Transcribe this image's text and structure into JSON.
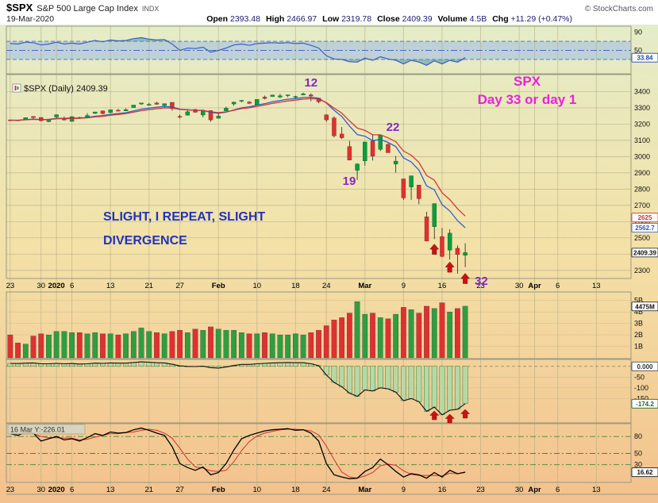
{
  "header": {
    "symbol": "$SPX",
    "name": "S&P 500 Large Cap Index",
    "exchange": "INDX",
    "date": "19-Mar-2020",
    "copyright": "© StockCharts.com",
    "quote": [
      {
        "label": "Open",
        "value": "2393.48"
      },
      {
        "label": "High",
        "value": "2466.97"
      },
      {
        "label": "Low",
        "value": "2319.78"
      },
      {
        "label": "Close",
        "value": "2409.39"
      },
      {
        "label": "Volume",
        "value": "4.5B"
      },
      {
        "label": "Chg",
        "value": "+11.29 (+0.47%)"
      }
    ]
  },
  "main_label": "$SPX (Daily) 2409.39",
  "annotations": {
    "cycle_day_top": "12",
    "cycle_day_rebound": "22",
    "cycle_day_low": "19",
    "cycle_day_current": "32",
    "headline_line1": "SPX",
    "headline_line2": "Day 33 or day 1",
    "divergence_line1": "SLIGHT, I REPEAT, SLIGHT",
    "divergence_line2": "DIVERGENCE",
    "tooltip": "16 Mar Y:-226.01"
  },
  "colors": {
    "candle_up": "#0b9e3d",
    "candle_down": "#e03030",
    "ma_fast": "#2857c8",
    "ma_slow": "#d03030",
    "rsi_line": "#3a5fc0",
    "rsi_band": "#b7cdd9",
    "volume_up": "#2f9e41",
    "volume_down": "#e03030",
    "hist_fill": "#b5d9a5",
    "hist_edge": "#3f7a37",
    "arrow": "#cc1111",
    "cycle_text": "#8426c9",
    "headline_text": "#e823d8",
    "divergence_text": "#2233bb",
    "bg_top": "#e4ecc8",
    "bg_mid": "#f3e2a8",
    "bg_bottom": "#f3c18d"
  },
  "xaxis": {
    "total_sessions": 81,
    "ticks": [
      {
        "label": "23",
        "i": 0
      },
      {
        "label": "30",
        "i": 4
      },
      {
        "label": "2020",
        "i": 6
      },
      {
        "label": "6",
        "i": 8
      },
      {
        "label": "13",
        "i": 13
      },
      {
        "label": "21",
        "i": 18
      },
      {
        "label": "27",
        "i": 22
      },
      {
        "label": "Feb",
        "i": 27
      },
      {
        "label": "10",
        "i": 32
      },
      {
        "label": "18",
        "i": 37
      },
      {
        "label": "24",
        "i": 41
      },
      {
        "label": "Mar",
        "i": 46
      },
      {
        "label": "9",
        "i": 51
      },
      {
        "label": "16",
        "i": 56
      },
      {
        "label": "23",
        "i": 61
      },
      {
        "label": "30",
        "i": 66
      },
      {
        "label": "Apr",
        "i": 68
      },
      {
        "label": "6",
        "i": 71
      },
      {
        "label": "13",
        "i": 76
      }
    ]
  },
  "chart_data": [
    {
      "panel": "rsi",
      "type": "line",
      "name": "RSI",
      "ylim": [
        0,
        100
      ],
      "yticks": [
        90,
        50
      ],
      "overbought": 70,
      "midline": 50,
      "oversold": 30,
      "last_value": 33.84,
      "last_value_label": "33.84",
      "values": [
        65,
        64,
        68,
        67,
        62,
        64,
        68,
        64,
        66,
        64,
        68,
        72,
        69,
        73,
        71,
        72,
        76,
        78,
        75,
        73,
        74,
        64,
        50,
        55,
        54,
        57,
        46,
        50,
        55,
        62,
        64,
        61,
        65,
        66,
        67,
        66,
        67,
        65,
        66,
        61,
        55,
        38,
        31,
        30,
        25,
        24,
        33,
        28,
        36,
        31,
        28,
        20,
        28,
        24,
        17,
        27,
        20,
        28,
        24,
        33.84
      ]
    },
    {
      "panel": "price",
      "type": "candlestick",
      "name": "$SPX Daily",
      "ylim": [
        2255,
        3495
      ],
      "yticks": [
        3400,
        3300,
        3200,
        3100,
        3000,
        2900,
        2800,
        2700,
        2600,
        2500,
        2400,
        2300
      ],
      "close_value": 2409.39,
      "close_label": "2409.39",
      "overlays": [
        {
          "name": "fast-ema",
          "color_key": "ma_fast",
          "span": 8,
          "last_value": 2562.7,
          "last_value_label": "2562.7"
        },
        {
          "name": "slow-ema",
          "color_key": "ma_slow",
          "span": 11,
          "last_value": 2625,
          "last_value_label": "2625"
        }
      ],
      "dates": [
        "23 Dec",
        "24 Dec",
        "26 Dec",
        "27 Dec",
        "30 Dec",
        "31 Dec",
        "2 Jan",
        "3 Jan",
        "6 Jan",
        "7 Jan",
        "8 Jan",
        "9 Jan",
        "10 Jan",
        "13 Jan",
        "14 Jan",
        "15 Jan",
        "16 Jan",
        "17 Jan",
        "21 Jan",
        "22 Jan",
        "23 Jan",
        "24 Jan",
        "27 Jan",
        "28 Jan",
        "29 Jan",
        "30 Jan",
        "31 Jan",
        "3 Feb",
        "4 Feb",
        "5 Feb",
        "6 Feb",
        "7 Feb",
        "10 Feb",
        "11 Feb",
        "12 Feb",
        "13 Feb",
        "14 Feb",
        "18 Feb",
        "19 Feb",
        "20 Feb",
        "21 Feb",
        "24 Feb",
        "25 Feb",
        "26 Feb",
        "27 Feb",
        "28 Feb",
        "2 Mar",
        "3 Mar",
        "4 Mar",
        "5 Mar",
        "6 Mar",
        "9 Mar",
        "10 Mar",
        "11 Mar",
        "12 Mar",
        "13 Mar",
        "16 Mar",
        "17 Mar",
        "18 Mar",
        "19 Mar"
      ],
      "open": [
        3226,
        3225,
        3227,
        3247,
        3241,
        3215,
        3244,
        3226,
        3217,
        3241,
        3238,
        3266,
        3282,
        3271,
        3285,
        3282,
        3302,
        3324,
        3321,
        3330,
        3315,
        3334,
        3247,
        3255,
        3290,
        3256,
        3283,
        3236,
        3281,
        3324,
        3344,
        3336,
        3319,
        3366,
        3370,
        3366,
        3378,
        3369,
        3380,
        3380,
        3360,
        3257,
        3238,
        3139,
        3062,
        2916,
        2974,
        3096,
        3045,
        3075,
        2954,
        2863,
        2813,
        2825,
        2630,
        2569,
        2508,
        2425,
        2436,
        2393
      ],
      "high": [
        3227,
        3226,
        3240,
        3248,
        3241,
        3231,
        3258,
        3247,
        3247,
        3245,
        3267,
        3275,
        3282,
        3288,
        3294,
        3298,
        3317,
        3330,
        3330,
        3337,
        3326,
        3334,
        3258,
        3285,
        3293,
        3285,
        3283,
        3269,
        3307,
        3338,
        3348,
        3342,
        3352,
        3376,
        3381,
        3386,
        3381,
        3375,
        3394,
        3389,
        3360,
        3260,
        3247,
        3182,
        3097,
        2959,
        3090,
        3136,
        3130,
        3083,
        3004,
        2863,
        2882,
        2825,
        2660,
        2711,
        2562,
        2553,
        2454,
        2467
      ],
      "low": [
        3220,
        3220,
        3227,
        3234,
        3217,
        3212,
        3235,
        3222,
        3214,
        3232,
        3236,
        3263,
        3260,
        3268,
        3277,
        3280,
        3302,
        3318,
        3316,
        3320,
        3301,
        3282,
        3234,
        3254,
        3271,
        3242,
        3214,
        3235,
        3280,
        3313,
        3334,
        3323,
        3318,
        3352,
        3370,
        3361,
        3366,
        3355,
        3378,
        3341,
        3328,
        3214,
        3118,
        3109,
        2977,
        2856,
        2945,
        2976,
        3034,
        3024,
        2901,
        2734,
        2734,
        2707,
        2478,
        2492,
        2381,
        2367,
        2280,
        2320
      ],
      "close": [
        3224,
        3223,
        3240,
        3240,
        3221,
        3231,
        3258,
        3235,
        3246,
        3237,
        3253,
        3275,
        3265,
        3288,
        3283,
        3289,
        3317,
        3330,
        3321,
        3322,
        3326,
        3295,
        3244,
        3276,
        3273,
        3284,
        3226,
        3249,
        3298,
        3335,
        3346,
        3328,
        3352,
        3358,
        3379,
        3374,
        3380,
        3370,
        3386,
        3373,
        3338,
        3226,
        3128,
        3116,
        2979,
        2954,
        3090,
        3003,
        3130,
        3024,
        2972,
        2746,
        2882,
        2741,
        2481,
        2711,
        2386,
        2529,
        2398,
        2409.39
      ]
    },
    {
      "panel": "volume",
      "type": "bar",
      "name": "Volume",
      "unit": "B",
      "ylim": [
        0,
        5.6
      ],
      "yticks": [
        {
          "v": 5,
          "label": "5B"
        },
        {
          "v": 4,
          "label": "4B"
        },
        {
          "v": 3,
          "label": "3B"
        },
        {
          "v": 2,
          "label": "2B"
        },
        {
          "v": 1,
          "label": "1B"
        }
      ],
      "last_value": 4.475,
      "last_value_label": "4475M",
      "values": [
        2.0,
        1.3,
        1.2,
        1.9,
        2.1,
        2.0,
        2.3,
        2.3,
        2.2,
        2.2,
        2.1,
        2.2,
        2.1,
        2.1,
        2.0,
        2.1,
        2.3,
        2.6,
        2.3,
        2.2,
        2.1,
        2.3,
        2.4,
        2.2,
        2.5,
        2.4,
        2.7,
        2.5,
        2.4,
        2.4,
        2.2,
        2.1,
        2.1,
        2.2,
        2.1,
        2.0,
        2.0,
        2.1,
        2.0,
        2.2,
        2.4,
        2.8,
        3.3,
        3.5,
        3.9,
        4.9,
        3.8,
        3.9,
        3.5,
        3.4,
        3.8,
        4.4,
        4.2,
        3.9,
        4.5,
        4.3,
        4.8,
        4.0,
        4.3,
        4.5
      ]
    },
    {
      "panel": "macd",
      "type": "histogram",
      "name": "MACD Histogram",
      "ylim": [
        -260,
        25
      ],
      "yticks": [
        {
          "v": -50,
          "label": "-50"
        },
        {
          "v": -100,
          "label": "-100"
        },
        {
          "v": -150,
          "label": "-150"
        }
      ],
      "zero_value": 0,
      "zero_label": "0.000",
      "last_value": -174.2,
      "last_value_label": "-174.2",
      "values": [
        14,
        13,
        15,
        16,
        12,
        12,
        14,
        12,
        13,
        11,
        12,
        15,
        14,
        16,
        15,
        15,
        18,
        21,
        19,
        17,
        16,
        10,
        2,
        0,
        -1,
        1,
        -6,
        -8,
        -3,
        4,
        9,
        9,
        12,
        14,
        16,
        17,
        18,
        17,
        17,
        12,
        3,
        -40,
        -75,
        -95,
        -125,
        -140,
        -110,
        -115,
        -100,
        -105,
        -120,
        -160,
        -150,
        -165,
        -210,
        -190,
        -226.01,
        -205,
        -200,
        -174.2
      ]
    },
    {
      "panel": "stoch",
      "type": "line",
      "name": "Stochastic",
      "ylim": [
        0,
        100
      ],
      "yticks": [
        80,
        50,
        30
      ],
      "last_value": 16.62,
      "last_value_label": "16.62",
      "series": [
        {
          "name": "signal",
          "color": "#d03030",
          "values": [
            88,
            85,
            85,
            85,
            80,
            78,
            78,
            77,
            77,
            74,
            75,
            79,
            82,
            85,
            85,
            87,
            88,
            91,
            93,
            91,
            86,
            77,
            59,
            40,
            26,
            24,
            19,
            18,
            20,
            35,
            55,
            71,
            81,
            86,
            89,
            92,
            93,
            93,
            92,
            90,
            83,
            63,
            39,
            17,
            8,
            6,
            10,
            16,
            28,
            31,
            29,
            19,
            13,
            11,
            11,
            11,
            10,
            15,
            14,
            17
          ]
        },
        {
          "name": "k",
          "color": "#000000",
          "values": [
            85,
            82,
            88,
            86,
            72,
            76,
            80,
            74,
            76,
            72,
            78,
            85,
            82,
            88,
            86,
            87,
            92,
            95,
            91,
            86,
            82,
            62,
            32,
            25,
            20,
            26,
            12,
            16,
            32,
            56,
            76,
            82,
            86,
            90,
            92,
            93,
            94,
            91,
            92,
            86,
            72,
            32,
            12,
            8,
            5,
            6,
            18,
            25,
            40,
            30,
            18,
            8,
            14,
            12,
            6,
            16,
            8,
            20,
            14,
            16.62
          ]
        }
      ]
    }
  ]
}
